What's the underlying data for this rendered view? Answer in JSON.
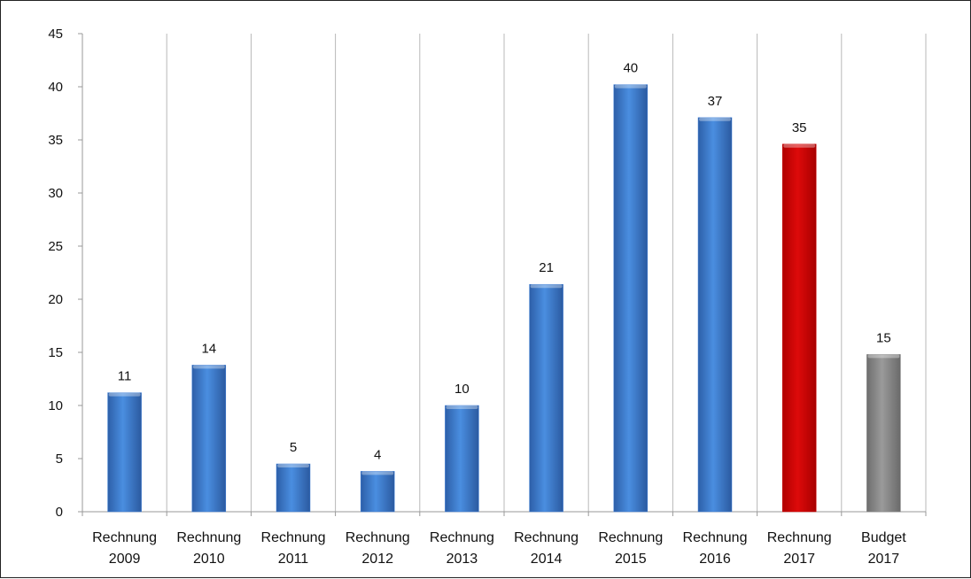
{
  "chart_data": {
    "type": "bar",
    "title": "",
    "xlabel": "",
    "ylabel": "",
    "ylim": [
      0,
      45
    ],
    "yticks": [
      0,
      5,
      10,
      15,
      20,
      25,
      30,
      35,
      40,
      45
    ],
    "grid": "vertical",
    "categories": [
      [
        "Rechnung",
        "2009"
      ],
      [
        "Rechnung",
        "2010"
      ],
      [
        "Rechnung",
        "2011"
      ],
      [
        "Rechnung",
        "2012"
      ],
      [
        "Rechnung",
        "2013"
      ],
      [
        "Rechnung",
        "2014"
      ],
      [
        "Rechnung",
        "2015"
      ],
      [
        "Rechnung",
        "2016"
      ],
      [
        "Rechnung",
        "2017"
      ],
      [
        "Budget",
        "2017"
      ]
    ],
    "values": [
      11.2,
      13.8,
      4.5,
      3.8,
      10.0,
      21.4,
      40.2,
      37.1,
      34.6,
      14.8
    ],
    "data_labels": [
      "11",
      "14",
      "5",
      "4",
      "10",
      "21",
      "40",
      "37",
      "35",
      "15"
    ],
    "colors": [
      "#3a7bd5",
      "#3a7bd5",
      "#3a7bd5",
      "#3a7bd5",
      "#3a7bd5",
      "#3a7bd5",
      "#3a7bd5",
      "#3a7bd5",
      "#cc0000",
      "#808080"
    ]
  }
}
